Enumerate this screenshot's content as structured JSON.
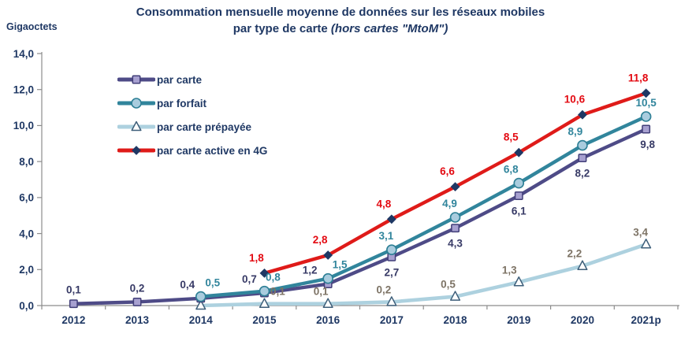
{
  "header": {
    "unit_label": "Gigaoctets",
    "title_line1": "Consommation mensuelle moyenne de données sur les réseaux mobiles",
    "title_line2_regular": "par type de carte ",
    "title_line2_italic": "(hors cartes \"MtoM\")"
  },
  "colors": {
    "title_text": "#1F3864",
    "axis_line": "#8C8C8C",
    "background": "#FFFFFF"
  },
  "chart_data": {
    "type": "line",
    "title": "Consommation mensuelle moyenne de données sur les réseaux mobiles par type de carte (hors cartes \"MtoM\")",
    "ylabel": "Gigaoctets",
    "xlabel": "",
    "ylim": [
      0,
      14
    ],
    "ytick_step": 2,
    "ytick_labels": [
      "0,0",
      "2,0",
      "4,0",
      "6,0",
      "8,0",
      "10,0",
      "12,0",
      "14,0"
    ],
    "grid": false,
    "legend_position": "top-left-inside",
    "categories": [
      "2012",
      "2013",
      "2014",
      "2015",
      "2016",
      "2017",
      "2018",
      "2019",
      "2020",
      "2021p"
    ],
    "series": [
      {
        "name": "par carte",
        "marker": "square",
        "color": "#4E4B87",
        "marker_fill": "#A7A0D0",
        "marker_stroke": "#413E78",
        "label_color": "#373A66",
        "values": [
          0.1,
          0.2,
          0.4,
          0.7,
          1.2,
          2.7,
          4.3,
          6.1,
          8.2,
          9.8
        ],
        "labels": [
          "0,1",
          "0,2",
          "0,4",
          "0,7",
          "1,2",
          "2,7",
          "4,3",
          "6,1",
          "8,2",
          "9,8"
        ]
      },
      {
        "name": "par forfait",
        "marker": "circle",
        "color": "#31859C",
        "marker_fill": "#A9CCDE",
        "marker_stroke": "#2D7F95",
        "label_color": "#31859C",
        "values": [
          null,
          null,
          0.5,
          0.8,
          1.5,
          3.1,
          4.9,
          6.8,
          8.9,
          10.5
        ],
        "labels": [
          "",
          "",
          "0,5",
          "0,8",
          "1,5",
          "3,1",
          "4,9",
          "6,8",
          "8,9",
          "10,5"
        ]
      },
      {
        "name": "par carte prépayée",
        "marker": "triangle",
        "color": "#ADD1DF",
        "marker_fill": "#FDFEFE",
        "marker_stroke": "#3E5F7A",
        "label_color": "#7D7365",
        "values": [
          null,
          null,
          0.0,
          0.1,
          0.1,
          0.2,
          0.5,
          1.3,
          2.2,
          3.4
        ],
        "labels": [
          "",
          "",
          "",
          "0,1",
          "0,1",
          "0,2",
          "0,5",
          "1,3",
          "2,2",
          "3,4"
        ]
      },
      {
        "name": "par carte active en 4G",
        "marker": "diamond",
        "color": "#DF1B19",
        "marker_fill": "#1F3864",
        "marker_stroke": "#1F3864",
        "label_color": "#E30A12",
        "values": [
          null,
          null,
          null,
          1.8,
          2.8,
          4.8,
          6.6,
          8.5,
          10.6,
          11.8
        ],
        "labels": [
          "",
          "",
          "",
          "1,8",
          "2,8",
          "4,8",
          "6,6",
          "8,5",
          "10,6",
          "11,8"
        ]
      }
    ]
  }
}
